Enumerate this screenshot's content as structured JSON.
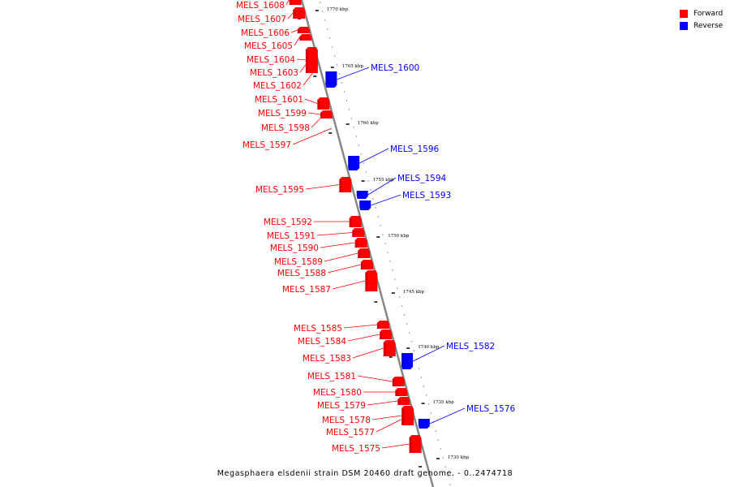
{
  "legend": [
    {
      "label": "Forward",
      "color": "#ff0000"
    },
    {
      "label": "Reverse",
      "color": "#0000ff"
    }
  ],
  "caption": "Megasphaera elsdenii strain DSM 20460 draft genome. - 0..2474718",
  "colors": {
    "forward": "#ff0000",
    "reverse": "#0000ff",
    "backbone": "#888888",
    "leader": "#000000"
  },
  "scale_labels": [
    "1770 kbp",
    "1765 kbp",
    "1760 kbp",
    "1755 kbp",
    "1750 kbp",
    "1745 kbp",
    "1740 kbp",
    "1735 kbp",
    "1730 kbp"
  ],
  "genes": [
    {
      "name": "MELS_1608",
      "strand": "forward"
    },
    {
      "name": "MELS_1607",
      "strand": "forward"
    },
    {
      "name": "MELS_1606",
      "strand": "forward"
    },
    {
      "name": "MELS_1605",
      "strand": "forward"
    },
    {
      "name": "MELS_1604",
      "strand": "forward"
    },
    {
      "name": "MELS_1603",
      "strand": "forward"
    },
    {
      "name": "MELS_1602",
      "strand": "forward"
    },
    {
      "name": "MELS_1601",
      "strand": "forward"
    },
    {
      "name": "MELS_1599",
      "strand": "forward"
    },
    {
      "name": "MELS_1598",
      "strand": "forward"
    },
    {
      "name": "MELS_1597",
      "strand": "forward"
    },
    {
      "name": "MELS_1600",
      "strand": "reverse"
    },
    {
      "name": "MELS_1596",
      "strand": "reverse"
    },
    {
      "name": "MELS_1594",
      "strand": "reverse"
    },
    {
      "name": "MELS_1593",
      "strand": "reverse"
    },
    {
      "name": "MELS_1595",
      "strand": "forward"
    },
    {
      "name": "MELS_1592",
      "strand": "forward"
    },
    {
      "name": "MELS_1591",
      "strand": "forward"
    },
    {
      "name": "MELS_1590",
      "strand": "forward"
    },
    {
      "name": "MELS_1589",
      "strand": "forward"
    },
    {
      "name": "MELS_1588",
      "strand": "forward"
    },
    {
      "name": "MELS_1587",
      "strand": "forward"
    },
    {
      "name": "MELS_1585",
      "strand": "forward"
    },
    {
      "name": "MELS_1584",
      "strand": "forward"
    },
    {
      "name": "MELS_1583",
      "strand": "forward"
    },
    {
      "name": "MELS_1582",
      "strand": "reverse"
    },
    {
      "name": "MELS_1581",
      "strand": "forward"
    },
    {
      "name": "MELS_1580",
      "strand": "forward"
    },
    {
      "name": "MELS_1579",
      "strand": "forward"
    },
    {
      "name": "MELS_1578",
      "strand": "forward"
    },
    {
      "name": "MELS_1577",
      "strand": "forward"
    },
    {
      "name": "MELS_1576",
      "strand": "reverse"
    },
    {
      "name": "MELS_1575",
      "strand": "forward"
    }
  ]
}
